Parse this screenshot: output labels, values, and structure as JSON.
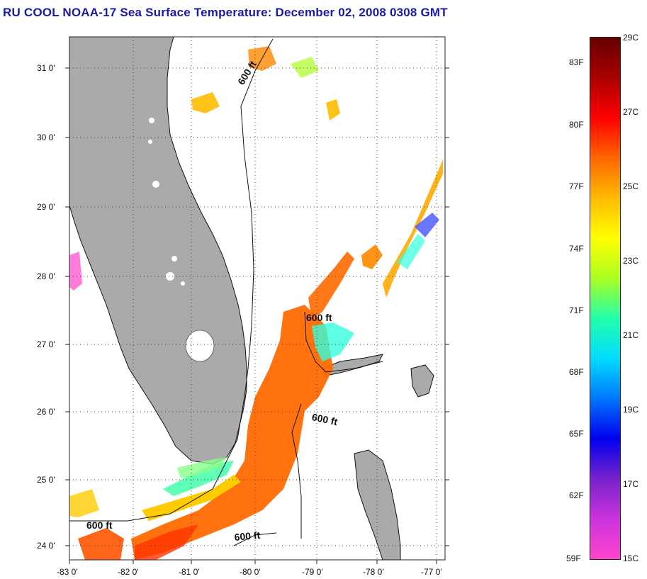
{
  "title": "RU COOL  NOAA-17  Sea Surface Temperature:  December 02, 2008 0308 GMT",
  "map": {
    "lon_labels": [
      "-83 0'",
      "-82 0'",
      "-81 0'",
      "-80 0'",
      "-79 0'",
      "-78 0'",
      "-77 0'"
    ],
    "lat_labels": [
      "31 0'",
      "30 0'",
      "29 0'",
      "28 0'",
      "27 0'",
      "26 0'",
      "25 0'",
      "24 0'"
    ],
    "contour_labels": [
      "600 ft",
      "600 ft",
      "600 ft",
      "600 ft",
      "600 ft"
    ],
    "colors": {
      "land": "#aaaaaa",
      "ocean": "#ffffff",
      "grid": "#444444"
    }
  },
  "colorbar": {
    "fahrenheit_labels": [
      "83F",
      "80F",
      "77F",
      "74F",
      "71F",
      "68F",
      "65F",
      "62F",
      "59F"
    ],
    "celsius_labels": [
      "29C",
      "27C",
      "25C",
      "23C",
      "21C",
      "19C",
      "17C",
      "15C"
    ],
    "range_c": [
      15,
      29
    ],
    "gradient_stops": [
      "#ff44cc",
      "#cc33dd",
      "#7722cc",
      "#0000ee",
      "#0077ff",
      "#00ddff",
      "#22ffaa",
      "#aaff22",
      "#ffff00",
      "#ffbb00",
      "#ff6600",
      "#ff0000",
      "#aa0000",
      "#660000"
    ]
  }
}
